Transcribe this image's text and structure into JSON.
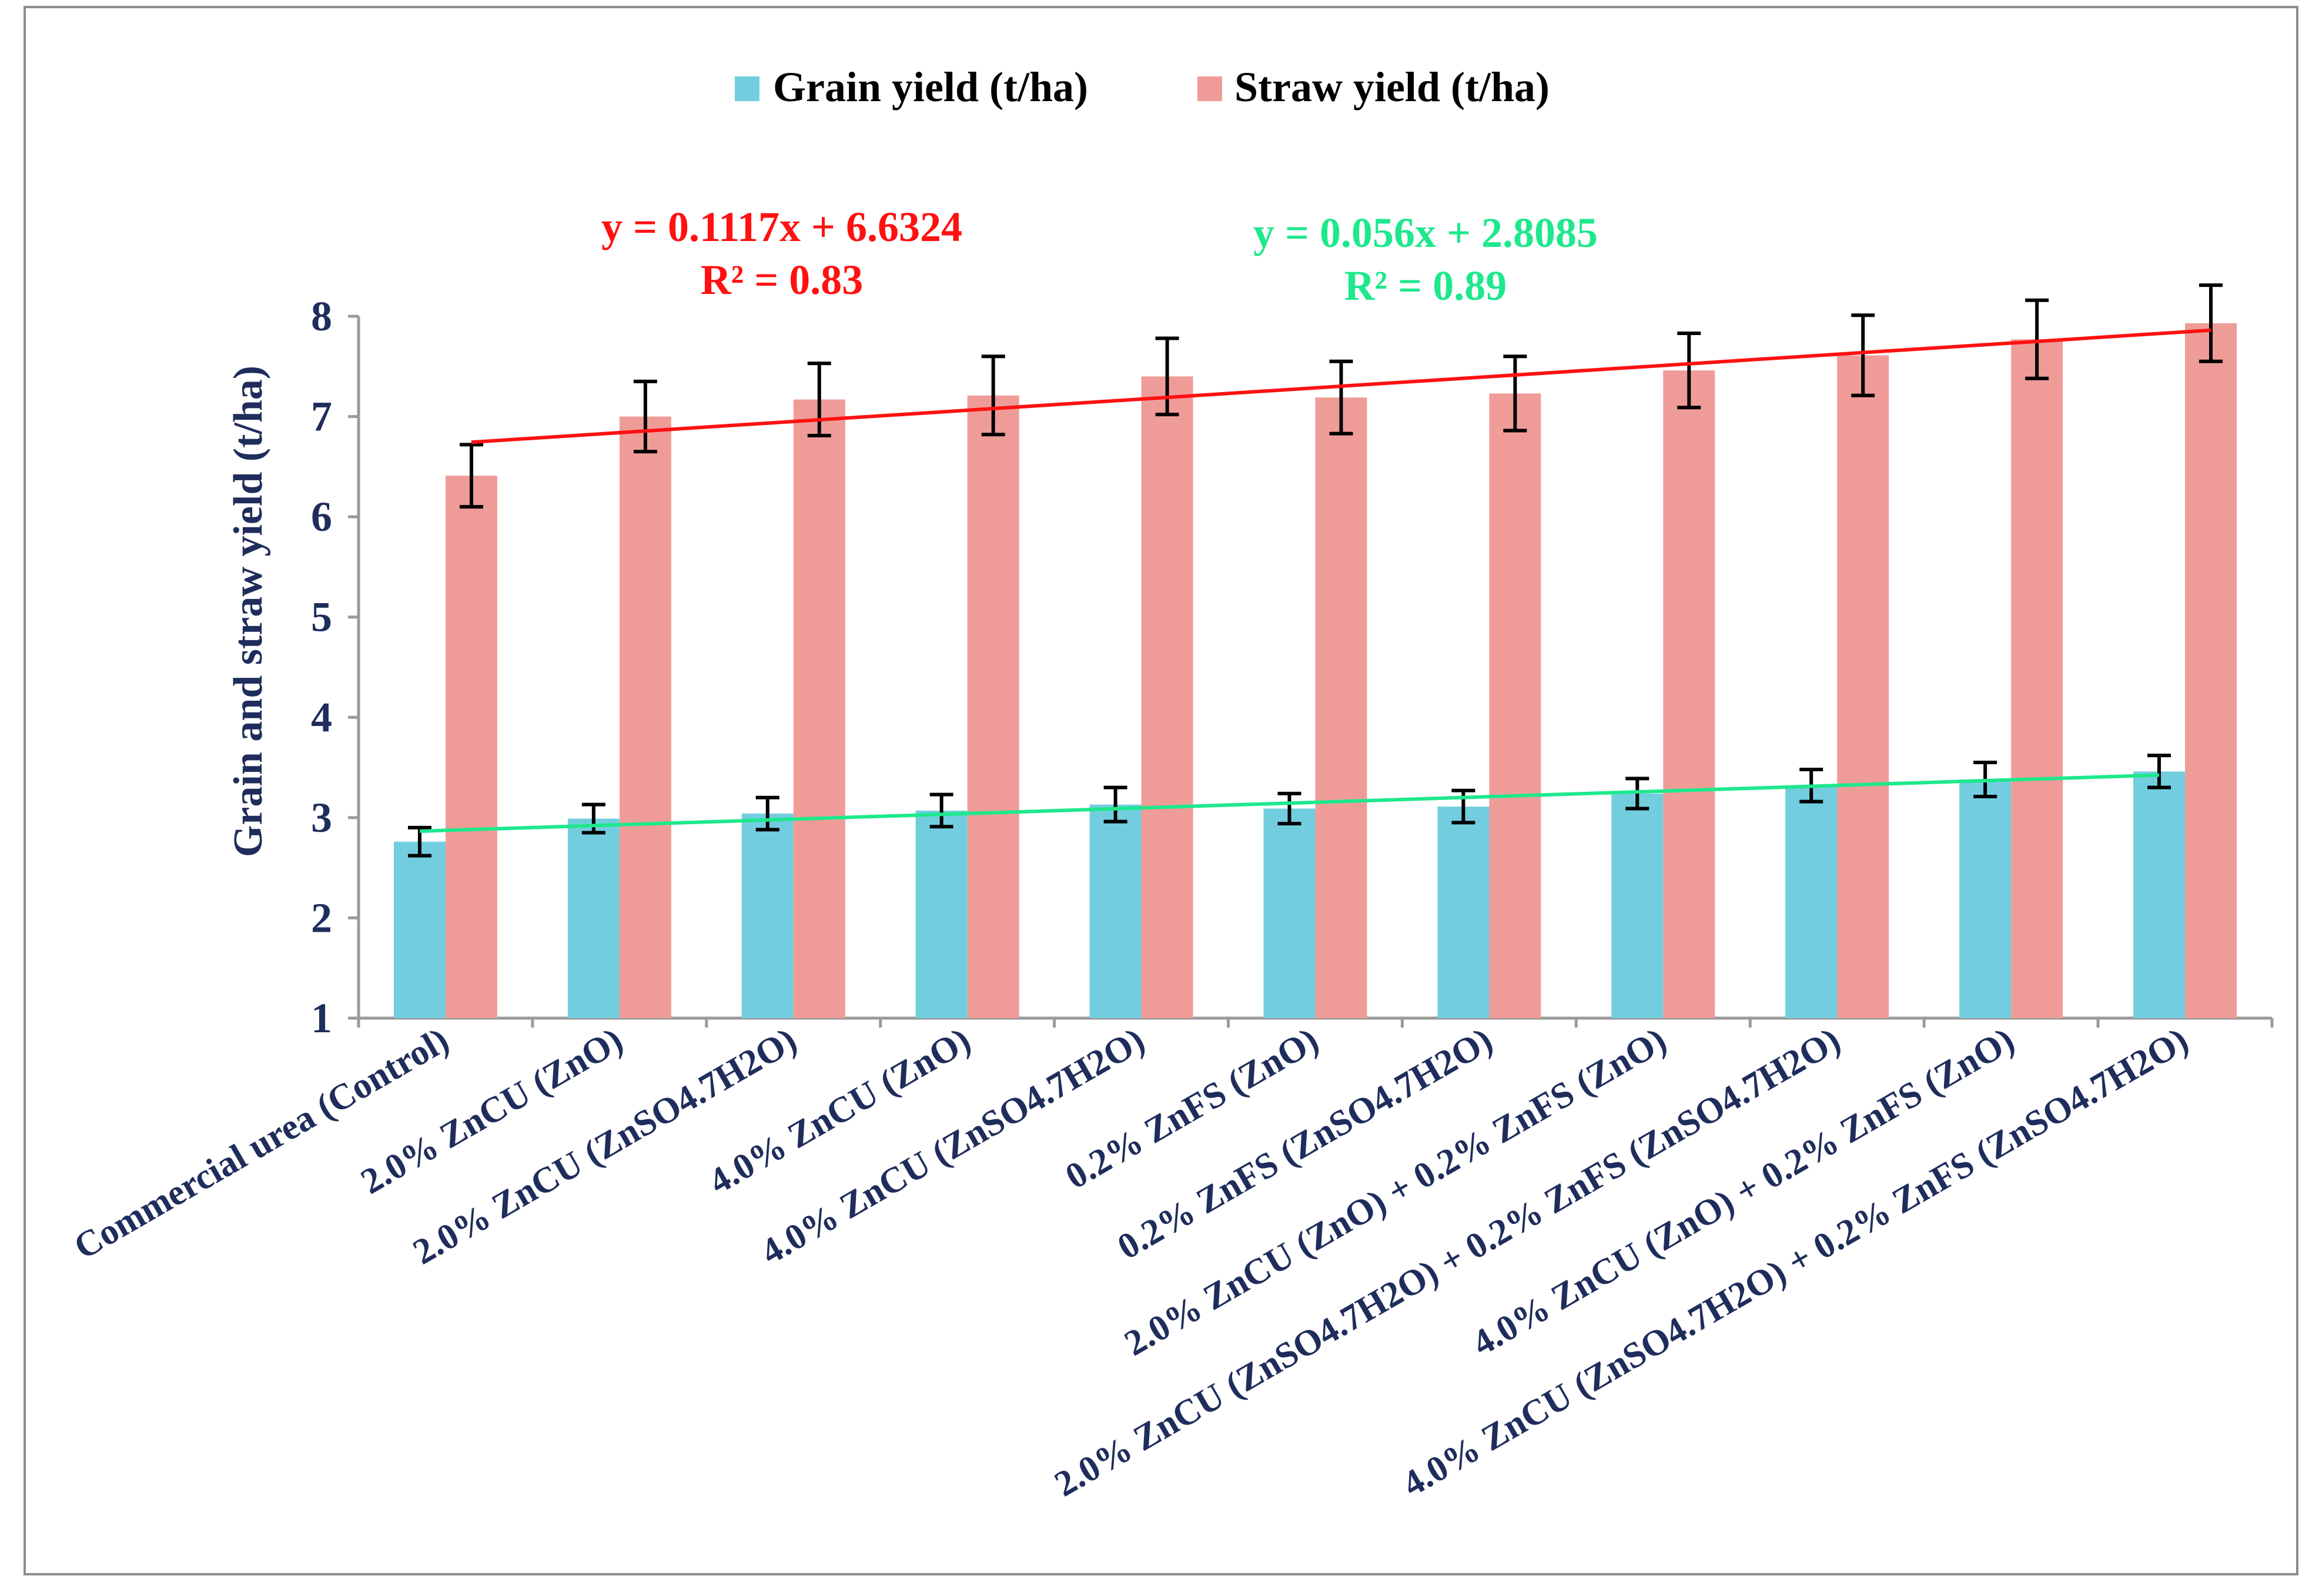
{
  "chart_data": {
    "type": "bar",
    "title": "",
    "xlabel": "",
    "ylabel": "Grain and straw yield (t/ha)",
    "ylim": [
      1,
      8
    ],
    "yticks": [
      "1",
      "2",
      "3",
      "4",
      "5",
      "6",
      "7",
      "8"
    ],
    "legend_position": "top-center",
    "categories": [
      "Commercial urea (Control)",
      "2.0% ZnCU (ZnO)",
      "2.0% ZnCU (ZnSO4.7H2O)",
      "4.0% ZnCU (ZnO)",
      "4.0% ZnCU (ZnSO4.7H2O)",
      "0.2% ZnFS (ZnO)",
      "0.2% ZnFS (ZnSO4.7H2O)",
      "2.0% ZnCU (ZnO) + 0.2% ZnFS (ZnO)",
      "2.0% ZnCU (ZnSO4.7H2O) + 0.2% ZnFS (ZnSO4.7H2O)",
      "4.0% ZnCU (ZnO) + 0.2% ZnFS (ZnO)",
      "4.0% ZnCU (ZnSO4.7H2O) + 0.2% ZnFS (ZnSO4.7H2O)"
    ],
    "series": [
      {
        "name": "Grain yield (t/ha)",
        "color": "#72cedf",
        "values": [
          2.76,
          2.99,
          3.04,
          3.07,
          3.13,
          3.09,
          3.11,
          3.24,
          3.32,
          3.38,
          3.46
        ],
        "errors": [
          0.14,
          0.14,
          0.16,
          0.16,
          0.17,
          0.15,
          0.16,
          0.15,
          0.16,
          0.17,
          0.16
        ],
        "trendline": {
          "slope": 0.056,
          "intercept": 2.8085,
          "equation": "y = 0.056x + 2.8085",
          "r2": "R² = 0.89",
          "color": "#1ee88c"
        }
      },
      {
        "name": "Straw yield (t/ha)",
        "color": "#ef9c99",
        "values": [
          6.41,
          7.0,
          7.17,
          7.21,
          7.4,
          7.19,
          7.23,
          7.46,
          7.61,
          7.77,
          7.93
        ],
        "errors": [
          0.31,
          0.35,
          0.36,
          0.39,
          0.38,
          0.36,
          0.37,
          0.37,
          0.4,
          0.39,
          0.38
        ],
        "trendline": {
          "slope": 0.1117,
          "intercept": 6.6324,
          "equation": "y = 0.1117x + 6.6324",
          "r2": "R² = 0.83",
          "color": "#ff1111"
        }
      }
    ]
  },
  "colors": {
    "axis_text": "#1f2d5c",
    "axis_line": "#9a9a9a",
    "error_bar": "#000000",
    "frame": "#8c8c8c"
  }
}
